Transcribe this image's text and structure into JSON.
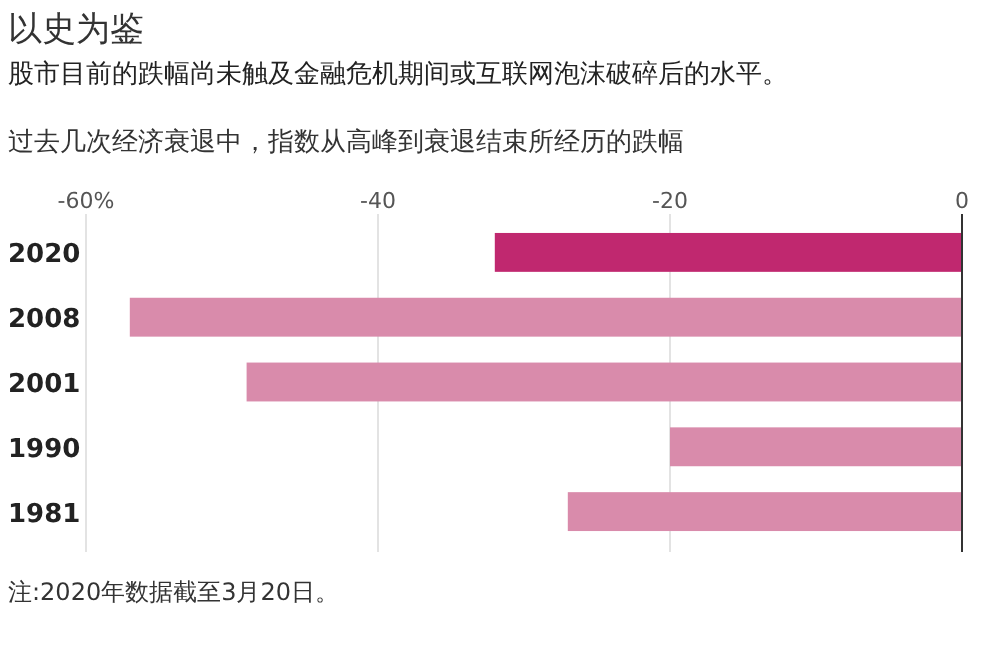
{
  "chart_data": {
    "type": "bar",
    "orientation": "horizontal",
    "title": "以史为鉴",
    "subtitle": "股市目前的跌幅尚未触及金融危机期间或互联网泡沫破碎后的水平。",
    "annotations": [
      "过去几次经济衰退中，指数从高峰到衰退结束所经历的跌幅",
      "注:2020年数据截至3月20日。"
    ],
    "categories": [
      "2020",
      "2008",
      "2001",
      "1990",
      "1981"
    ],
    "values": [
      -32,
      -57,
      -49,
      -20,
      -27
    ],
    "colors": [
      "#c0286f",
      "#d98bab",
      "#d98bab",
      "#d98bab",
      "#d98bab"
    ],
    "xlim": [
      -60,
      0
    ],
    "xticks": [
      {
        "value": -60,
        "label": "-60%"
      },
      -40,
      -20,
      0
    ],
    "grid": "x"
  }
}
